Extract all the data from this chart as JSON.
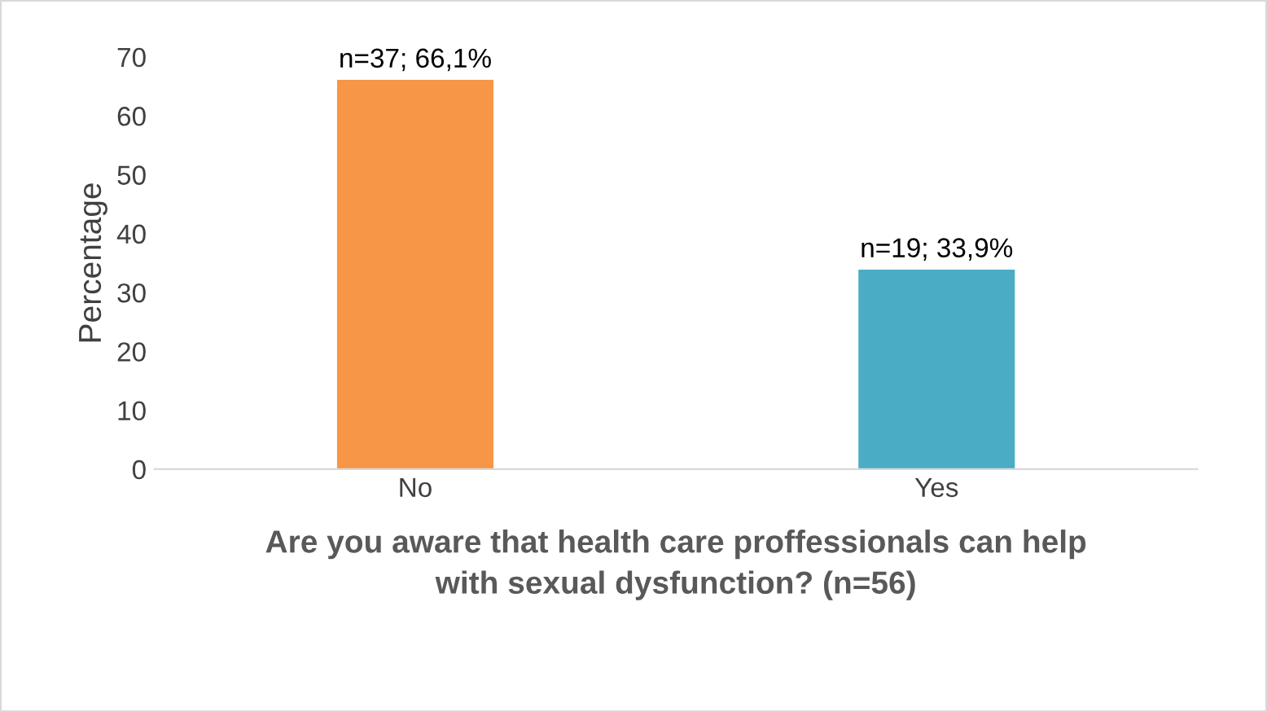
{
  "chart_data": {
    "type": "bar",
    "ylabel": "Percentage",
    "xlabel": "Are you aware that health care proffessionals can help\nwith sexual dysfunction? (n=56)",
    "categories": [
      "No",
      "Yes"
    ],
    "values": [
      66.1,
      33.9
    ],
    "colors": [
      "#f79646",
      "#4bacc6"
    ],
    "value_labels": [
      "n=37; 66,1%",
      "n=19; 33,9%"
    ],
    "ylim": [
      0,
      70
    ],
    "yticks": [
      0,
      10,
      20,
      30,
      40,
      50,
      60,
      70
    ],
    "grid": false
  }
}
